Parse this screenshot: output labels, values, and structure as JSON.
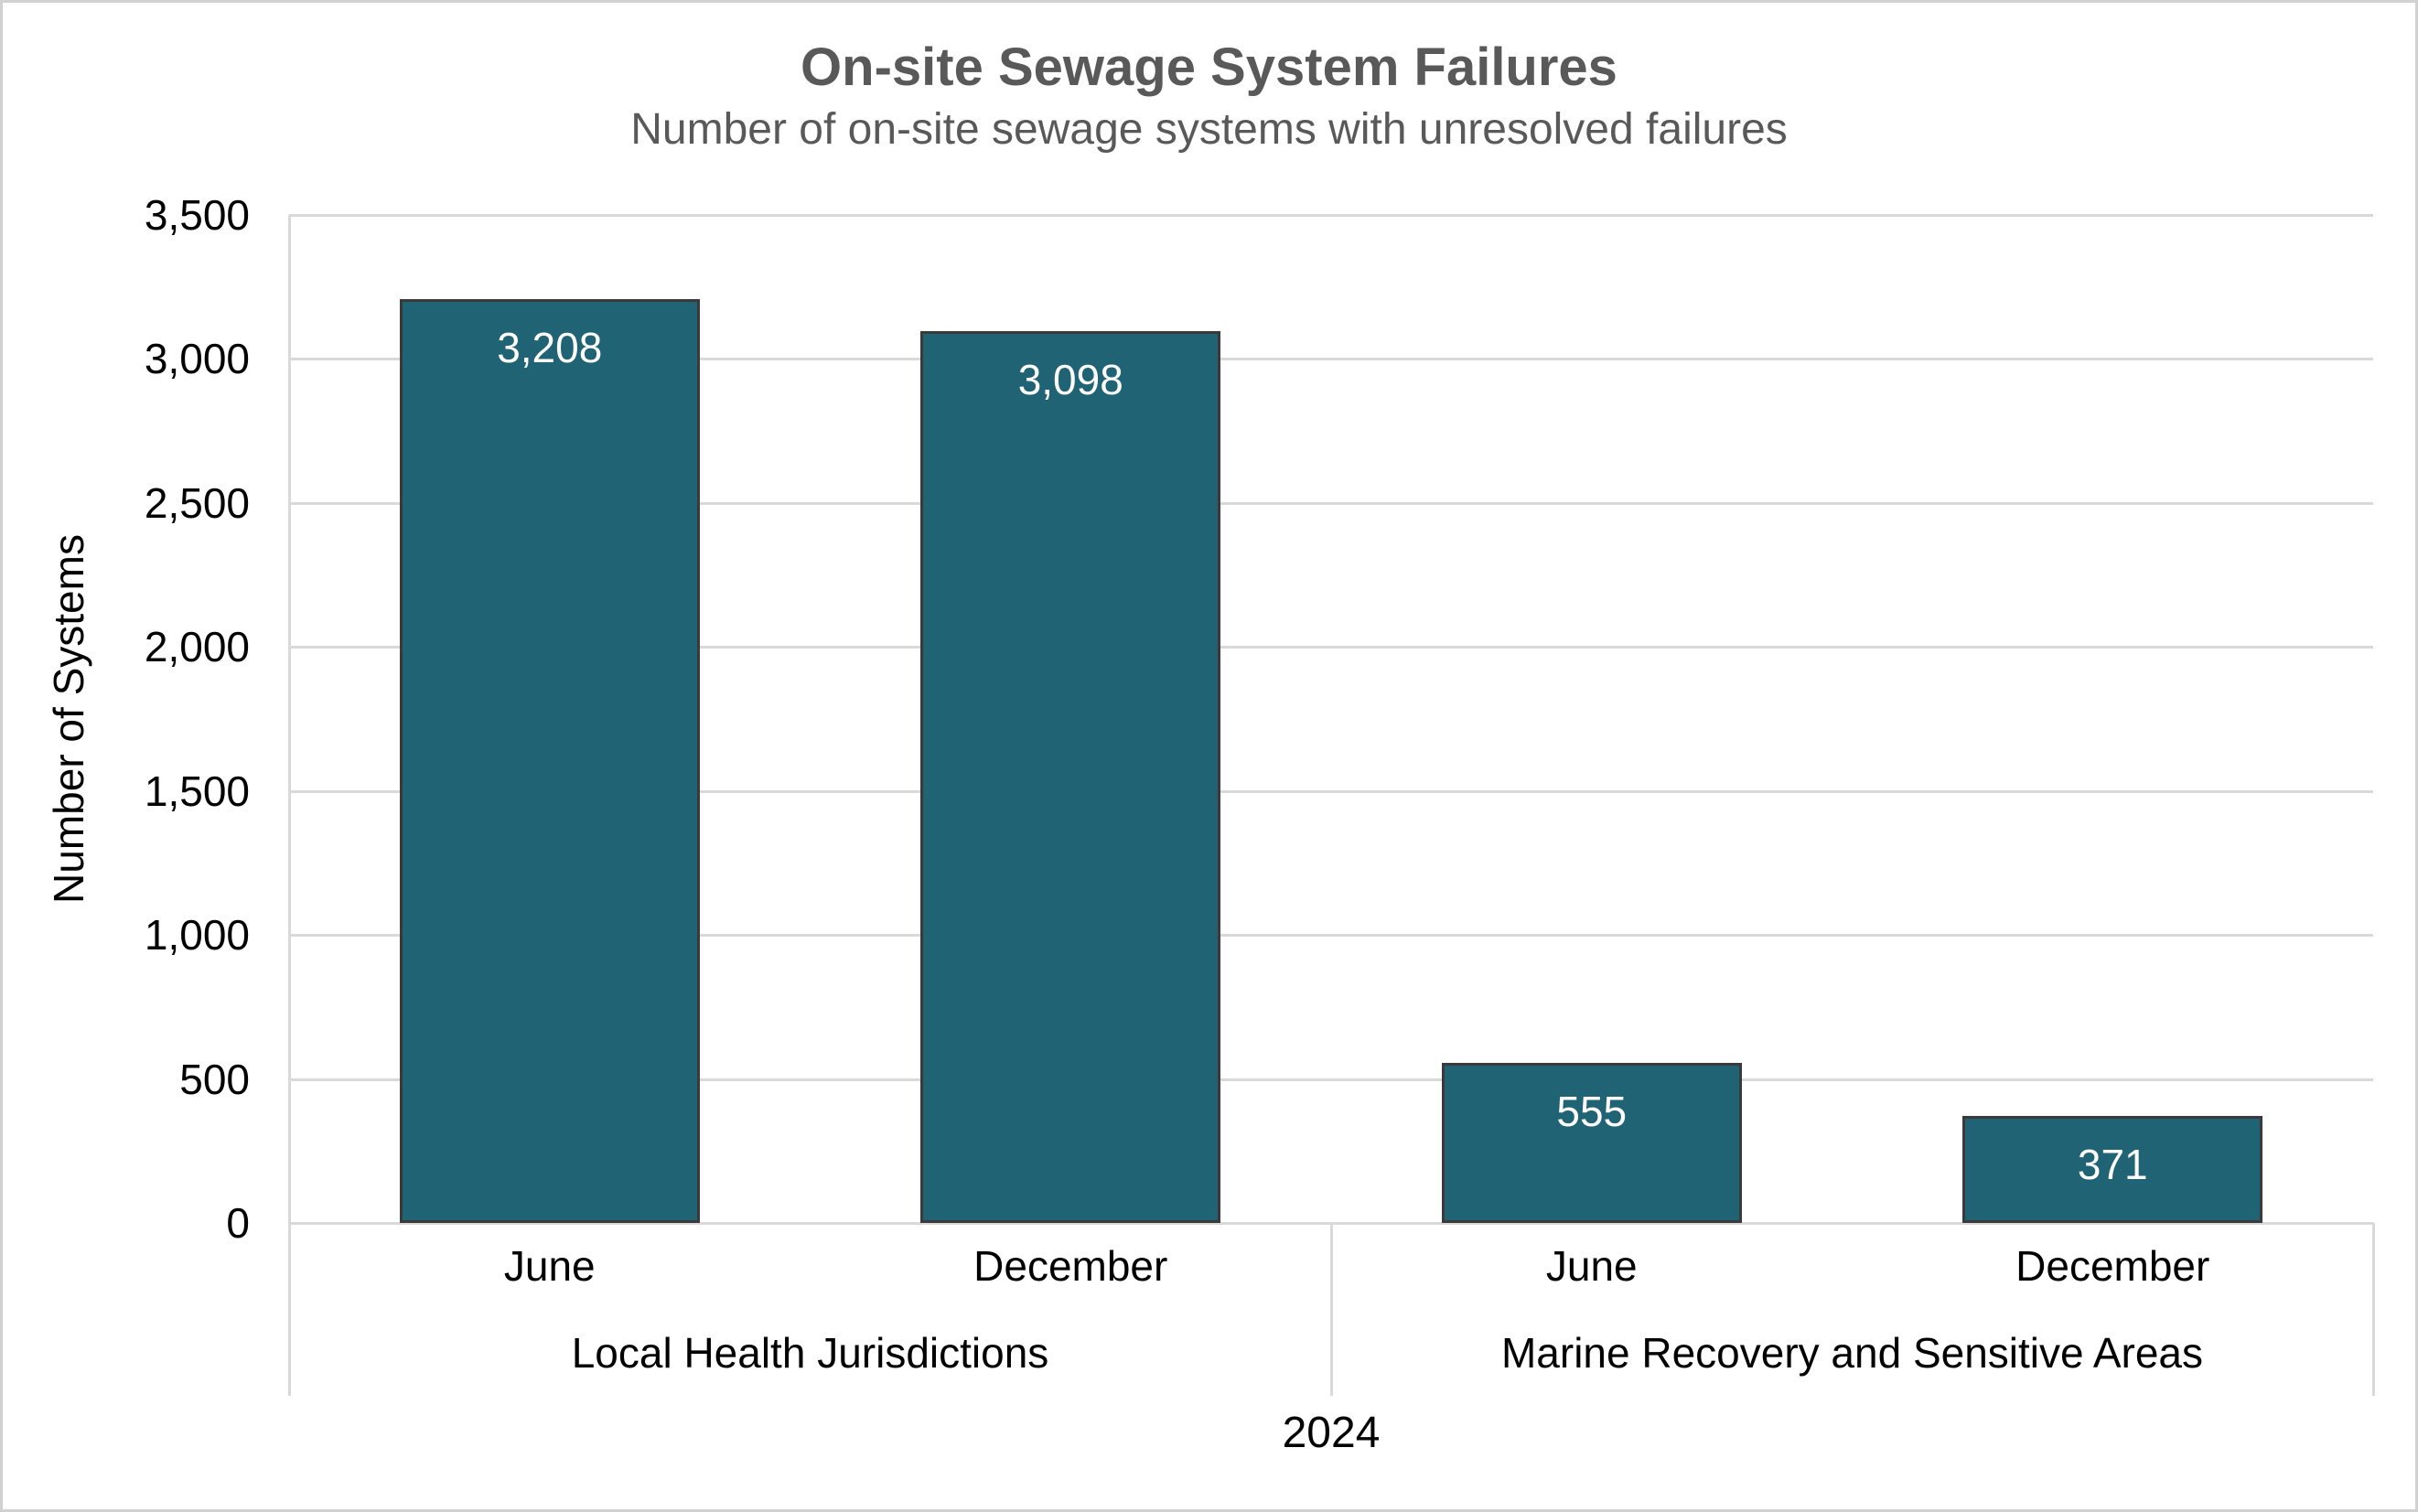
{
  "title": "On-site Sewage System Failures",
  "subtitle": "Number of on-site sewage systems with unresolved failures",
  "chart_data": {
    "type": "bar",
    "title": "On-site Sewage System Failures",
    "subtitle": "Number of on-site sewage systems with unresolved failures",
    "xlabel": "2024",
    "ylabel": "Number of Systems",
    "ylim": [
      0,
      3500
    ],
    "ytick_step": 500,
    "ytick_labels": [
      "0",
      "500",
      "1,000",
      "1,500",
      "2,000",
      "2,500",
      "3,000",
      "3,500"
    ],
    "grid": true,
    "legend": "none",
    "groups": [
      {
        "label": "Local Health Jurisdictions",
        "categories": [
          "June",
          "December"
        ],
        "values": [
          3208,
          3098
        ],
        "value_labels": [
          "3,208",
          "3,098"
        ]
      },
      {
        "label": "Marine Recovery and Sensitive Areas",
        "categories": [
          "June",
          "December"
        ],
        "values": [
          555,
          371
        ],
        "value_labels": [
          "555",
          "371"
        ]
      }
    ]
  },
  "colors": {
    "bar_fill": "#206374",
    "bar_border": "#3a3a3a",
    "gridline": "#d9d9d9",
    "title_text": "#595959",
    "axis_text": "#000000",
    "value_label_text": "#ffffff",
    "outer_border": "#d1d1d1",
    "background": "#ffffff"
  }
}
